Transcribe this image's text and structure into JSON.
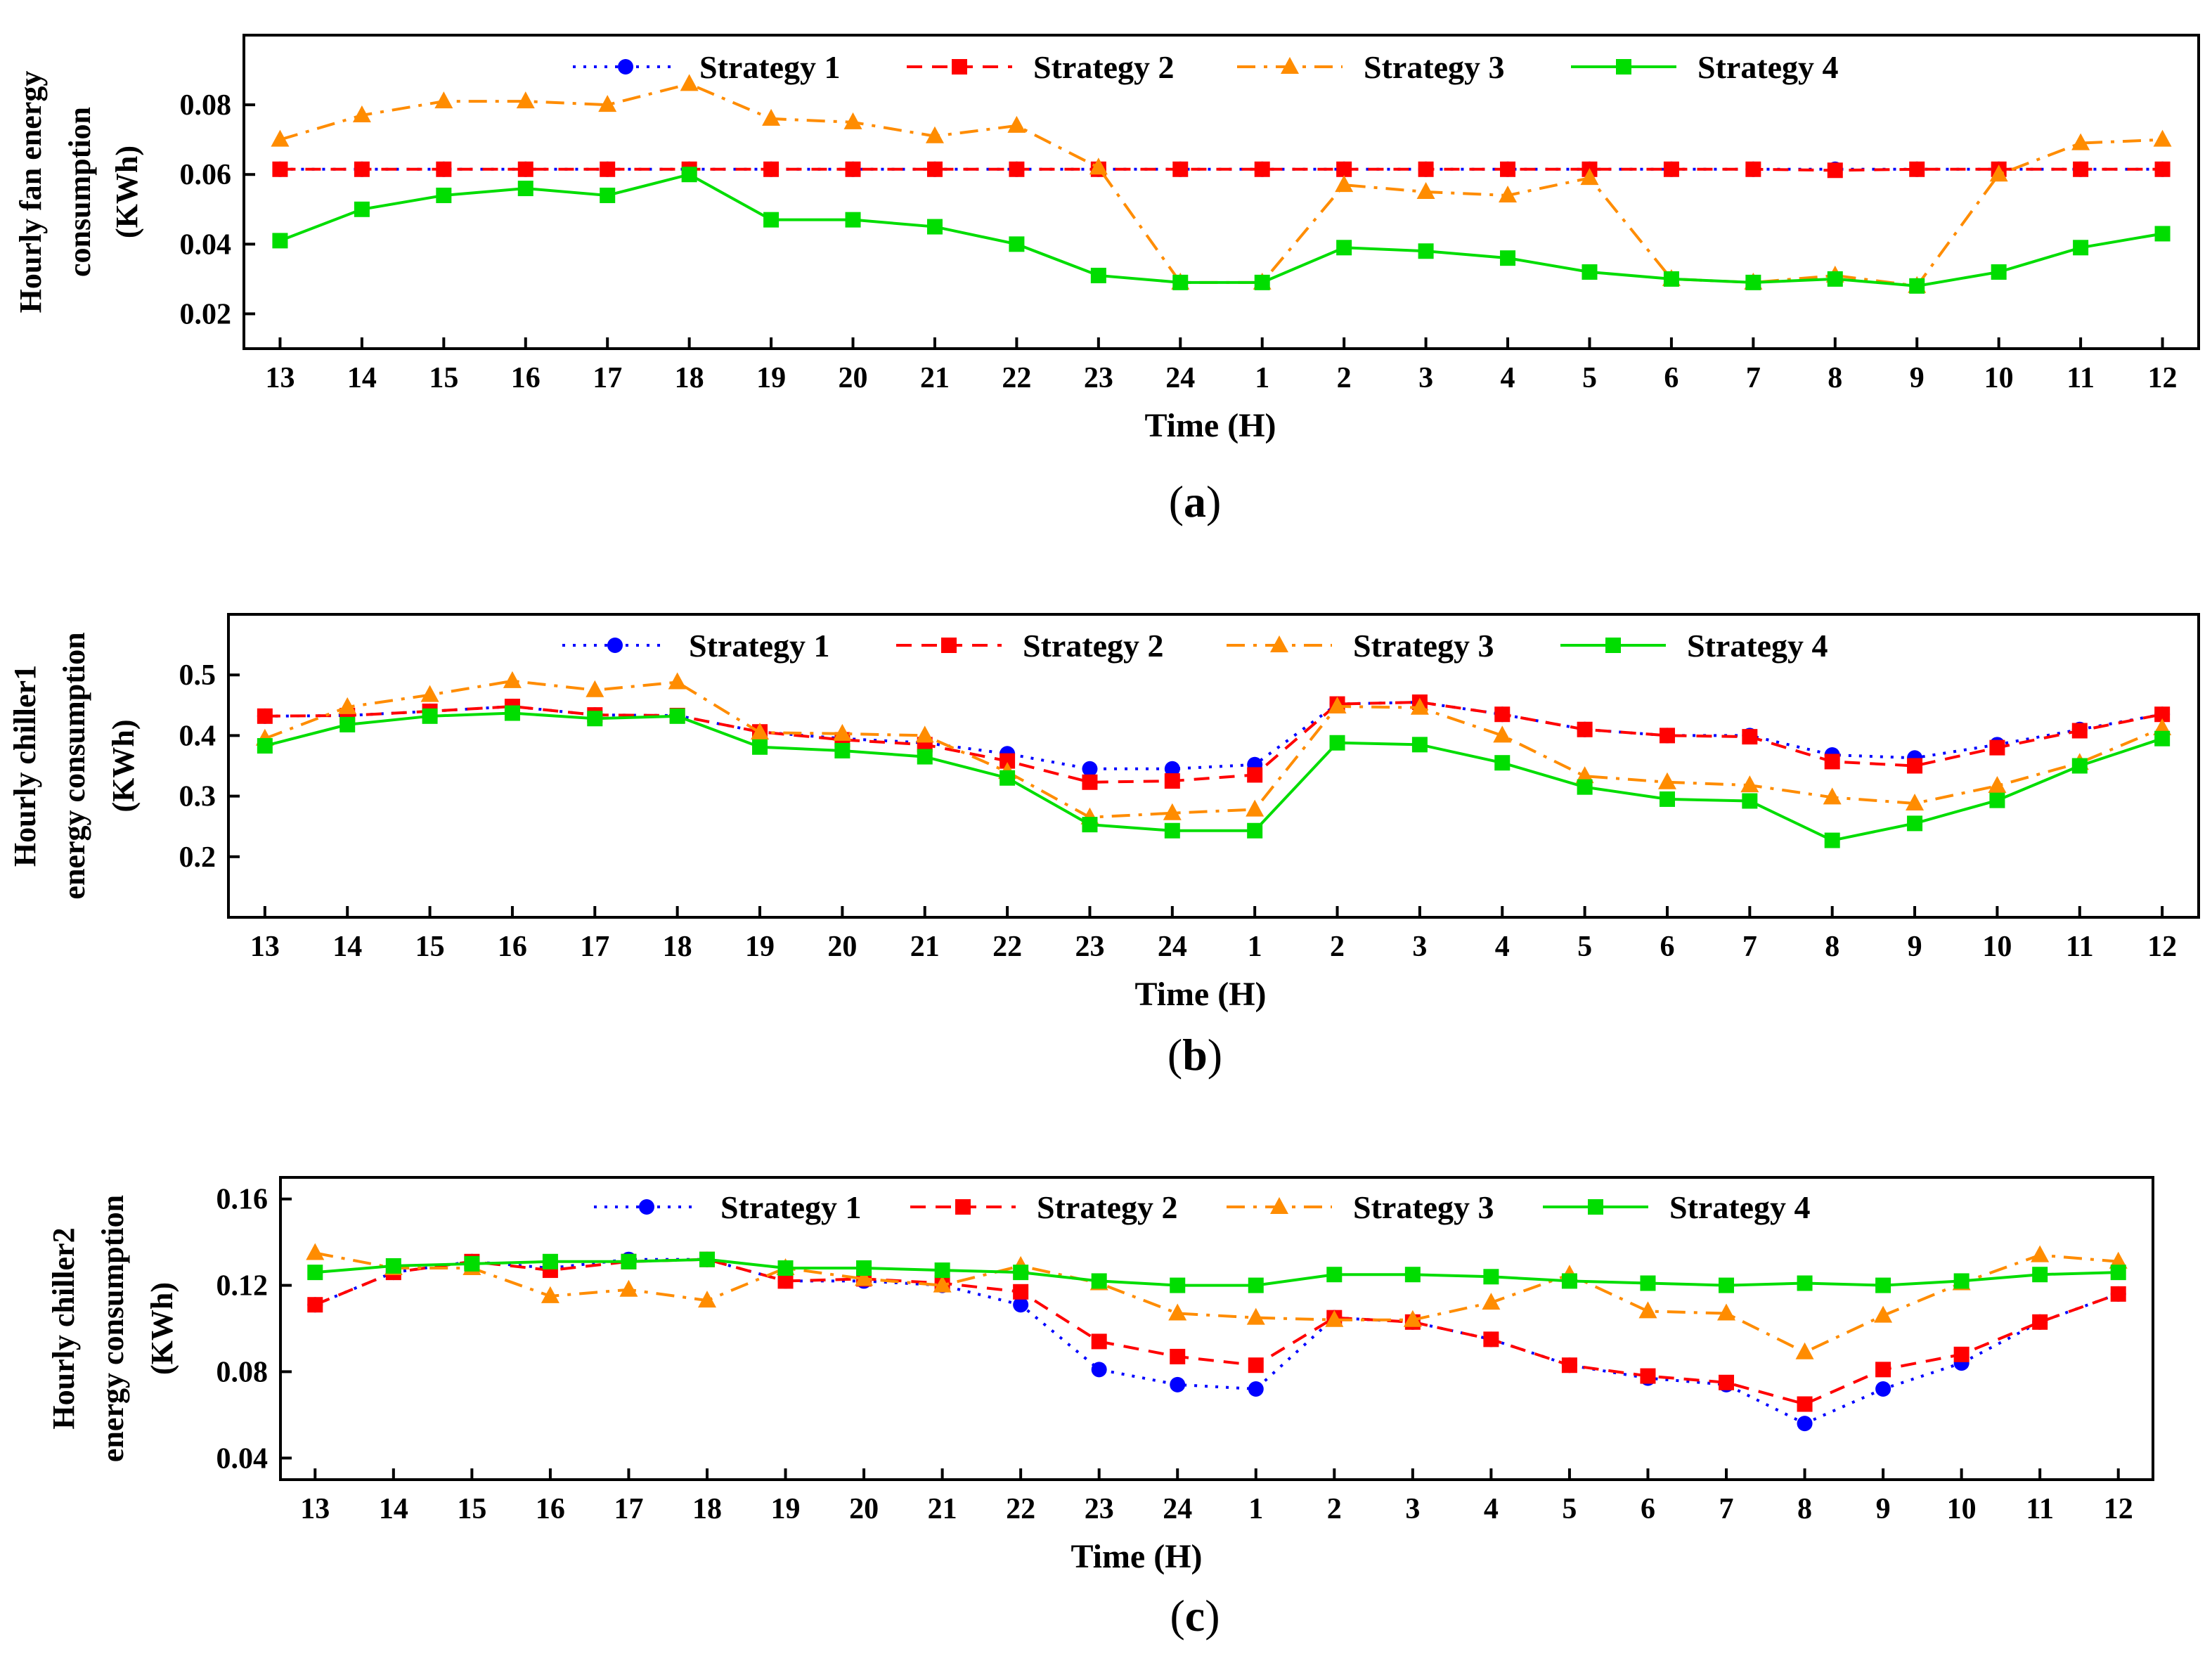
{
  "chart_data": [
    {
      "type": "line",
      "caption": "(a)",
      "caption_parts": [
        "(",
        "a",
        ")"
      ],
      "xlabel": "Time (H)",
      "ylabel": [
        "Hourly fan energy",
        "consumption",
        "(KWh)"
      ],
      "ylim": [
        0.01,
        0.1
      ],
      "yticks": [
        "0.02",
        "0.04",
        "0.06",
        "0.08"
      ],
      "categories": [
        "13",
        "14",
        "15",
        "16",
        "17",
        "18",
        "19",
        "20",
        "21",
        "22",
        "23",
        "24",
        "1",
        "2",
        "3",
        "4",
        "5",
        "6",
        "7",
        "8",
        "9",
        "10",
        "11",
        "12"
      ],
      "series": [
        {
          "name": "Strategy 1",
          "color": "#0000ff",
          "style": "dot",
          "marker": "circle",
          "values": [
            0.0615,
            0.0615,
            0.0615,
            0.0615,
            0.0615,
            0.0615,
            0.0615,
            0.0615,
            0.0615,
            0.0615,
            0.0615,
            0.0615,
            0.0615,
            0.0615,
            0.0615,
            0.0615,
            0.0615,
            0.0615,
            0.0615,
            0.0615,
            0.0615,
            0.0615,
            0.0615,
            0.0615
          ]
        },
        {
          "name": "Strategy 2",
          "color": "#ff0000",
          "style": "dash",
          "marker": "square",
          "values": [
            0.0615,
            0.0615,
            0.0615,
            0.0615,
            0.0615,
            0.0615,
            0.0615,
            0.0615,
            0.0615,
            0.0615,
            0.0615,
            0.0615,
            0.0615,
            0.0615,
            0.0615,
            0.0615,
            0.0615,
            0.0615,
            0.0615,
            0.0612,
            0.0615,
            0.0615,
            0.0615,
            0.0615
          ]
        },
        {
          "name": "Strategy 3",
          "color": "#ff8c00",
          "style": "dashdot",
          "marker": "triangle",
          "values": [
            0.07,
            0.077,
            0.081,
            0.081,
            0.08,
            0.086,
            0.076,
            0.075,
            0.071,
            0.074,
            0.062,
            0.029,
            0.029,
            0.057,
            0.055,
            0.054,
            0.059,
            0.03,
            0.029,
            0.031,
            0.028,
            0.06,
            0.069,
            0.07
          ]
        },
        {
          "name": "Strategy 4",
          "color": "#00dd00",
          "style": "solid",
          "marker": "square",
          "values": [
            0.041,
            0.05,
            0.054,
            0.056,
            0.054,
            0.06,
            0.047,
            0.047,
            0.045,
            0.04,
            0.031,
            0.029,
            0.029,
            0.039,
            0.038,
            0.036,
            0.032,
            0.03,
            0.029,
            0.03,
            0.028,
            0.032,
            0.039,
            0.043
          ]
        }
      ]
    },
    {
      "type": "line",
      "caption": "(b)",
      "caption_parts": [
        "(",
        "b",
        ")"
      ],
      "xlabel": "Time (H)",
      "ylabel": [
        "Hourly chiller1",
        "energy consumption",
        "(KWh)"
      ],
      "ylim": [
        0.1,
        0.6
      ],
      "yticks": [
        "0.2",
        "0.3",
        "0.4",
        "0.5"
      ],
      "categories": [
        "13",
        "14",
        "15",
        "16",
        "17",
        "18",
        "19",
        "20",
        "21",
        "22",
        "23",
        "24",
        "1",
        "2",
        "3",
        "4",
        "5",
        "6",
        "7",
        "8",
        "9",
        "10",
        "11",
        "12"
      ],
      "series": [
        {
          "name": "Strategy 1",
          "color": "#0000ff",
          "style": "dot",
          "marker": "circle",
          "values": [
            0.432,
            0.433,
            0.44,
            0.448,
            0.434,
            0.433,
            0.406,
            0.395,
            0.388,
            0.37,
            0.345,
            0.345,
            0.352,
            0.452,
            0.455,
            0.435,
            0.41,
            0.4,
            0.4,
            0.368,
            0.363,
            0.385,
            0.41,
            0.435
          ]
        },
        {
          "name": "Strategy 2",
          "color": "#ff0000",
          "style": "dash",
          "marker": "square",
          "values": [
            0.432,
            0.433,
            0.44,
            0.448,
            0.434,
            0.433,
            0.406,
            0.393,
            0.385,
            0.358,
            0.323,
            0.325,
            0.335,
            0.452,
            0.455,
            0.435,
            0.41,
            0.4,
            0.398,
            0.357,
            0.35,
            0.38,
            0.408,
            0.435
          ]
        },
        {
          "name": "Strategy 3",
          "color": "#ff8c00",
          "style": "dashdot",
          "marker": "triangle",
          "values": [
            0.395,
            0.447,
            0.467,
            0.49,
            0.475,
            0.488,
            0.405,
            0.403,
            0.4,
            0.34,
            0.265,
            0.272,
            0.278,
            0.448,
            0.446,
            0.4,
            0.333,
            0.323,
            0.318,
            0.298,
            0.288,
            0.317,
            0.355,
            0.412
          ]
        },
        {
          "name": "Strategy 4",
          "color": "#00dd00",
          "style": "solid",
          "marker": "square",
          "values": [
            0.383,
            0.418,
            0.432,
            0.437,
            0.428,
            0.432,
            0.381,
            0.375,
            0.365,
            0.33,
            0.253,
            0.243,
            0.243,
            0.388,
            0.385,
            0.355,
            0.315,
            0.295,
            0.292,
            0.227,
            0.255,
            0.293,
            0.35,
            0.395
          ]
        }
      ]
    },
    {
      "type": "line",
      "caption": "(c)",
      "caption_parts": [
        "(",
        "c",
        ")"
      ],
      "xlabel": "Time (H)",
      "ylabel": [
        "Hourly chiller2",
        "energy consumption",
        "(KWh)"
      ],
      "ylim": [
        0.03,
        0.17
      ],
      "yticks": [
        "0.04",
        "0.08",
        "0.12",
        "0.16"
      ],
      "categories": [
        "13",
        "14",
        "15",
        "16",
        "17",
        "18",
        "19",
        "20",
        "21",
        "22",
        "23",
        "24",
        "1",
        "2",
        "3",
        "4",
        "5",
        "6",
        "7",
        "8",
        "9",
        "10",
        "11",
        "12"
      ],
      "series": [
        {
          "name": "Strategy 1",
          "color": "#0000ff",
          "style": "dot",
          "marker": "circle",
          "values": [
            0.111,
            0.126,
            0.131,
            0.128,
            0.132,
            0.132,
            0.122,
            0.122,
            0.12,
            0.111,
            0.081,
            0.074,
            0.072,
            0.105,
            0.103,
            0.095,
            0.083,
            0.077,
            0.074,
            0.056,
            0.072,
            0.084,
            0.103,
            0.116
          ]
        },
        {
          "name": "Strategy 2",
          "color": "#ff0000",
          "style": "dash",
          "marker": "square",
          "values": [
            0.111,
            0.126,
            0.131,
            0.127,
            0.131,
            0.132,
            0.122,
            0.123,
            0.121,
            0.117,
            0.094,
            0.087,
            0.083,
            0.105,
            0.103,
            0.095,
            0.083,
            0.078,
            0.075,
            0.065,
            0.081,
            0.088,
            0.103,
            0.116
          ]
        },
        {
          "name": "Strategy 3",
          "color": "#ff8c00",
          "style": "dashdot",
          "marker": "triangle",
          "values": [
            0.135,
            0.128,
            0.128,
            0.115,
            0.118,
            0.113,
            0.128,
            0.123,
            0.12,
            0.129,
            0.121,
            0.107,
            0.105,
            0.104,
            0.104,
            0.112,
            0.125,
            0.108,
            0.107,
            0.089,
            0.106,
            0.121,
            0.134,
            0.131
          ]
        },
        {
          "name": "Strategy 4",
          "color": "#00dd00",
          "style": "solid",
          "marker": "square",
          "values": [
            0.126,
            0.129,
            0.13,
            0.131,
            0.131,
            0.132,
            0.128,
            0.128,
            0.127,
            0.126,
            0.122,
            0.12,
            0.12,
            0.125,
            0.125,
            0.124,
            0.122,
            0.121,
            0.12,
            0.121,
            0.12,
            0.122,
            0.125,
            0.126
          ]
        }
      ]
    }
  ]
}
